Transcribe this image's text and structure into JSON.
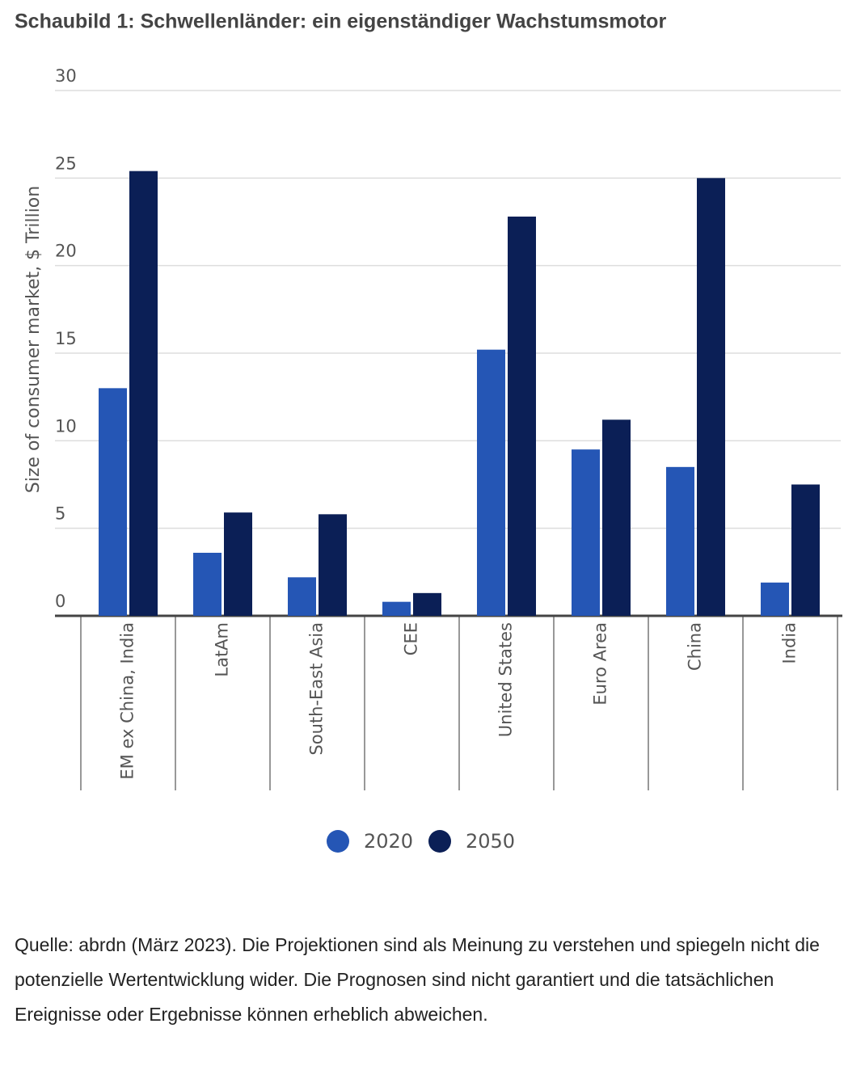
{
  "chart_data": {
    "type": "bar",
    "title": "Schaubild 1: Schwellenländer: ein eigenständiger Wachstumsmotor",
    "y_label": "Size of consumer market, $ Trillion",
    "categories": [
      "EM ex China, India",
      "LatAm",
      "South-East Asia",
      "CEE",
      "United States",
      "Euro Area",
      "China",
      "India"
    ],
    "series": [
      {
        "name": "2020",
        "color": "#2556b5",
        "values": [
          13.0,
          3.6,
          2.2,
          0.8,
          15.2,
          9.5,
          8.5,
          1.9
        ]
      },
      {
        "name": "2050",
        "color": "#0b1f56",
        "values": [
          25.4,
          5.9,
          5.8,
          1.3,
          22.8,
          11.2,
          25.0,
          7.5
        ]
      }
    ],
    "ylim": [
      0,
      30
    ],
    "yticks": [
      0,
      5,
      10,
      15,
      20,
      25,
      30
    ],
    "grid": true,
    "legend": "bottom",
    "footnote": "Quelle: abrdn (März 2023). Die Projektionen sind als Meinung zu verstehen und spiegeln nicht die potenzielle Wertentwicklung wider. Die Prognosen sind nicht garantiert und die tatsächlichen Ereignisse oder Ergebnisse können erheblich abweichen."
  }
}
